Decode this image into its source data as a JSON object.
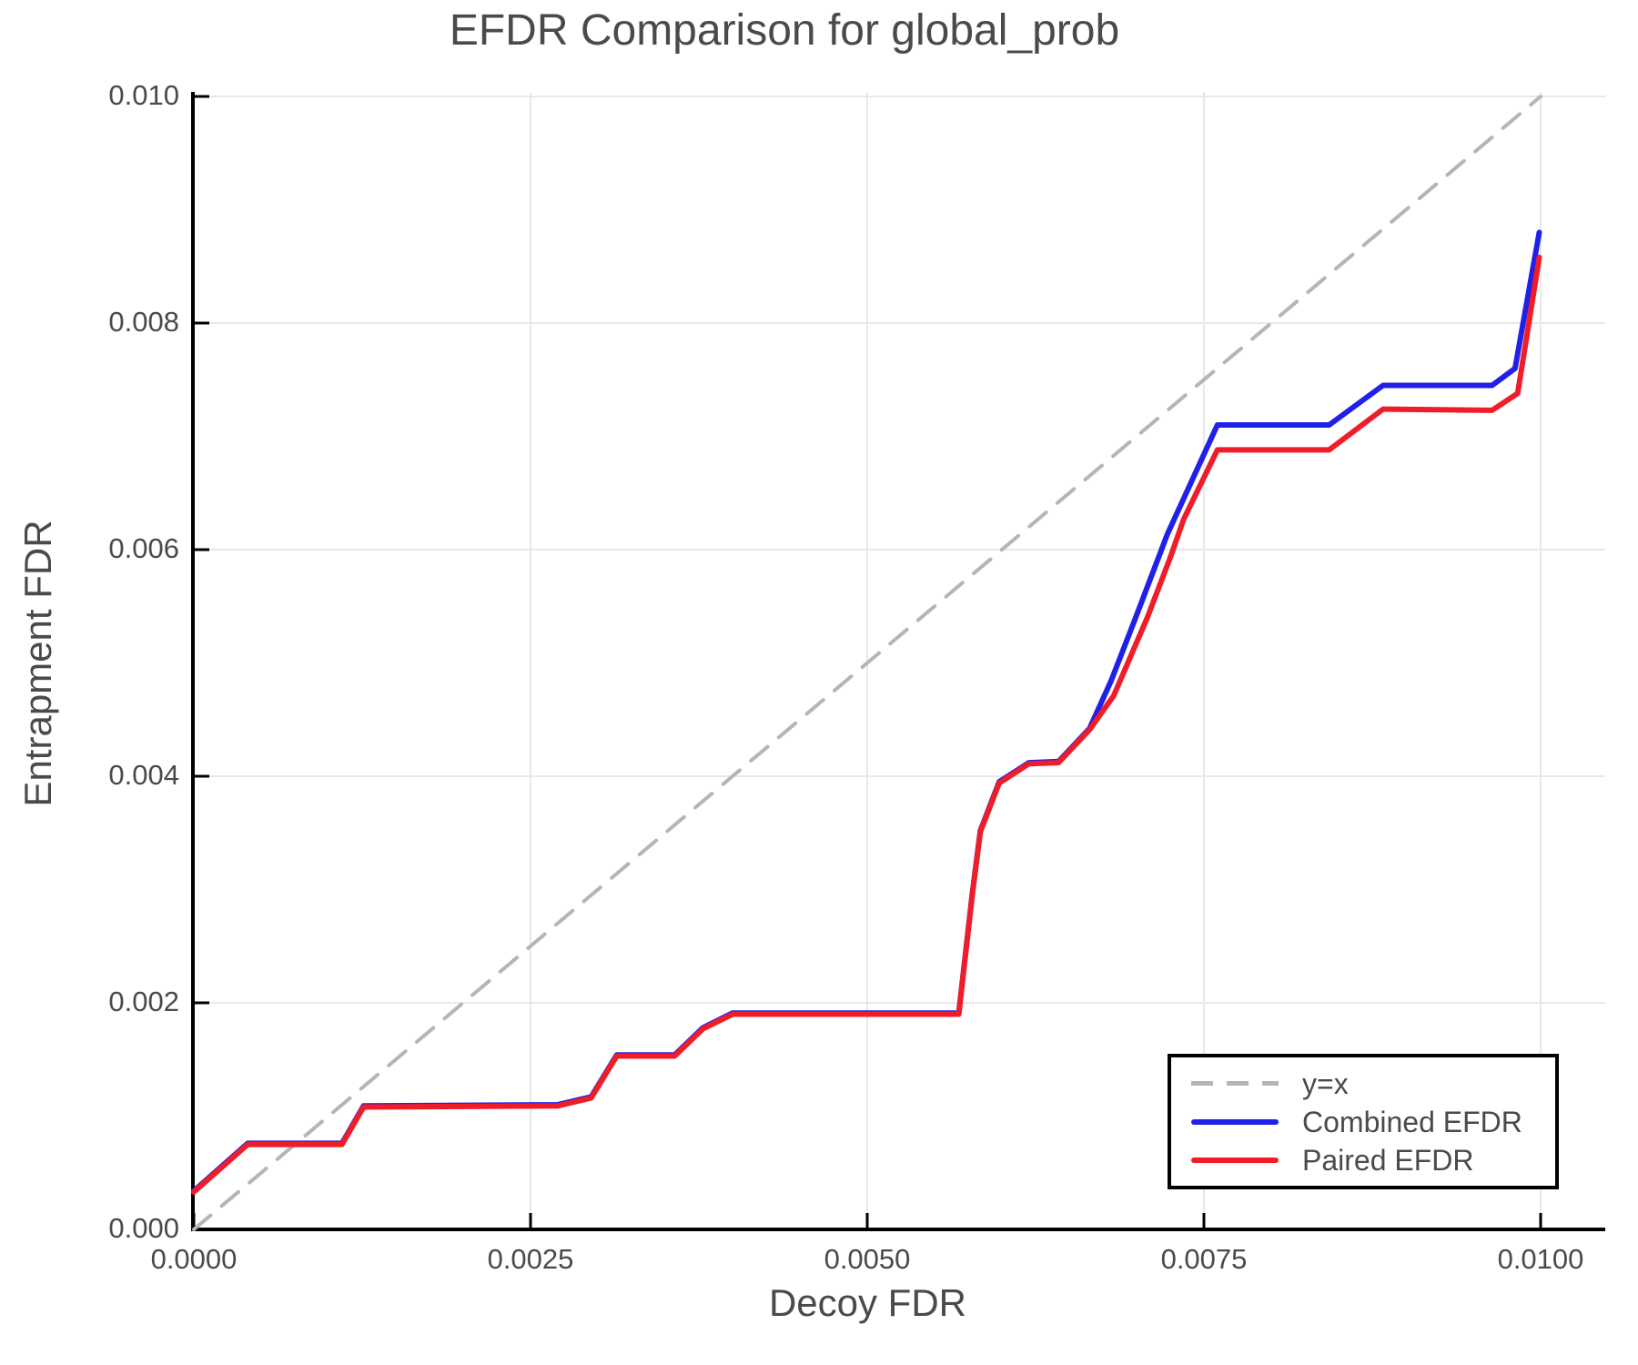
{
  "title": "EFDR Comparison for global_prob",
  "x_axis": {
    "label": "Decoy FDR",
    "tick_labels": [
      "0.0000",
      "0.0025",
      "0.0050",
      "0.0075",
      "0.0100"
    ],
    "tick_values": [
      0,
      0.0025,
      0.005,
      0.0075,
      0.01
    ]
  },
  "y_axis": {
    "label": "Entrapment FDR",
    "tick_labels": [
      "0.000",
      "0.002",
      "0.004",
      "0.006",
      "0.008",
      "0.010"
    ],
    "tick_values": [
      0,
      0.002,
      0.004,
      0.006,
      0.008,
      0.01
    ]
  },
  "legend": {
    "items": [
      {
        "label": "y=x",
        "color": "#b5b5b5",
        "style": "dashed"
      },
      {
        "label": "Combined EFDR",
        "color": "#2020e8",
        "style": "solid"
      },
      {
        "label": "Paired EFDR",
        "color": "#f01d28",
        "style": "solid"
      }
    ]
  },
  "colors": {
    "combined": "#2020e8",
    "paired": "#f01d28",
    "identity": "#b5b5b5",
    "grid": "#e8e8e8",
    "spine": "#000000",
    "text": "#4a4a4a"
  },
  "chart_data": {
    "type": "line",
    "title": "EFDR Comparison for global_prob",
    "xlabel": "Decoy FDR",
    "ylabel": "Entrapment FDR",
    "xlim": [
      0,
      0.0105
    ],
    "ylim": [
      0,
      0.01004
    ],
    "grid": true,
    "legend_position": "lower right",
    "series": [
      {
        "name": "y=x",
        "color": "#b5b5b5",
        "dash": true,
        "x": [
          0,
          0.01
        ],
        "y": [
          0,
          0.01
        ]
      },
      {
        "name": "Combined EFDR",
        "color": "#2020e8",
        "dash": false,
        "x": [
          0,
          0.0004,
          0.0011,
          0.00126,
          0.0027,
          0.00295,
          0.00314,
          0.00357,
          0.00378,
          0.004,
          0.00568,
          0.00578,
          0.00584,
          0.00598,
          0.0062,
          0.00642,
          0.00665,
          0.00681,
          0.00699,
          0.00723,
          0.0076,
          0.00843,
          0.00883,
          0.00964,
          0.00981,
          0.00999
        ],
        "y": [
          0.00034,
          0.00076,
          0.00076,
          0.00109,
          0.0011,
          0.00117,
          0.00154,
          0.00154,
          0.00178,
          0.00191,
          0.00191,
          0.00296,
          0.00352,
          0.00395,
          0.00412,
          0.00413,
          0.00442,
          0.00484,
          0.00539,
          0.00614,
          0.0071,
          0.0071,
          0.00745,
          0.00745,
          0.0076,
          0.0088
        ]
      },
      {
        "name": "Paired EFDR",
        "color": "#f01d28",
        "dash": false,
        "x": [
          0,
          0.0004,
          0.0011,
          0.00126,
          0.0027,
          0.00295,
          0.00314,
          0.00357,
          0.00378,
          0.004,
          0.00568,
          0.00578,
          0.00584,
          0.00598,
          0.0062,
          0.00642,
          0.00665,
          0.00683,
          0.00708,
          0.00725,
          0.00735,
          0.0076,
          0.00843,
          0.00883,
          0.00964,
          0.00983,
          0.00999
        ],
        "y": [
          0.00033,
          0.00075,
          0.00075,
          0.00108,
          0.00109,
          0.00116,
          0.00153,
          0.00153,
          0.00177,
          0.0019,
          0.0019,
          0.00295,
          0.00351,
          0.00394,
          0.00411,
          0.00412,
          0.00441,
          0.00471,
          0.0054,
          0.00593,
          0.00627,
          0.00688,
          0.00688,
          0.00724,
          0.00723,
          0.00738,
          0.00858
        ]
      }
    ]
  }
}
